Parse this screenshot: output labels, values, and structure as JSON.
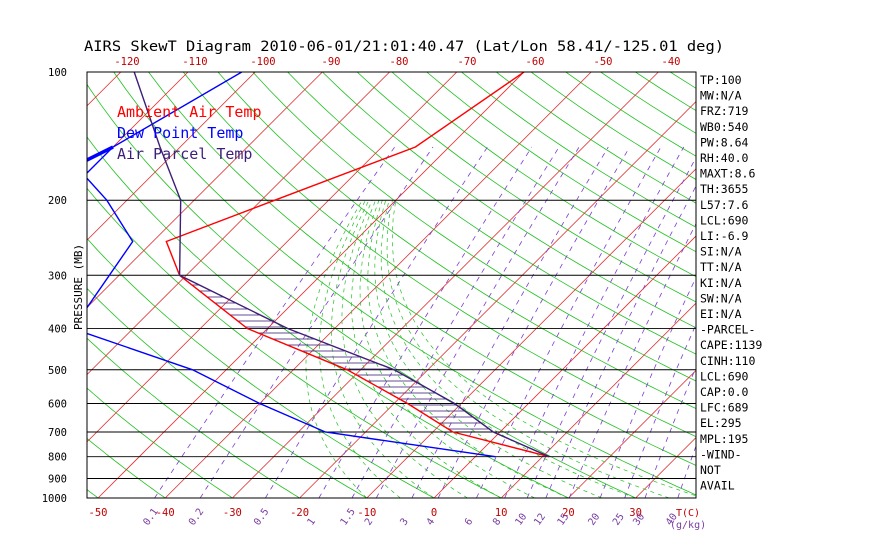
{
  "chart_data": {
    "type": "line",
    "title": "AIRS SkewT Diagram 2010-06-01/21:01:40.47 (Lat/Lon 58.41/-125.01 deg)",
    "ylabel": "PRESSURE (MB)",
    "y_axis": {
      "scale": "log",
      "range": [
        1000,
        100
      ],
      "tick_labels": [
        "100",
        "200",
        "300",
        "400",
        "500",
        "600",
        "700",
        "800",
        "900",
        "1000"
      ],
      "grid": true
    },
    "x_axis_top": {
      "ticks": [
        -120,
        -110,
        -100,
        -90,
        -80,
        -70,
        -60,
        -50,
        -40
      ]
    },
    "x_axis_bottom": {
      "unit_label": "T(C)",
      "ticks": [
        -50,
        -40,
        -30,
        -20,
        -10,
        0,
        10,
        20,
        30
      ]
    },
    "mixing_ratio_labels": [
      "0.1",
      "0.2",
      "0.5",
      "1",
      "1.5",
      "2",
      "3",
      "4",
      "6",
      "8",
      "10",
      "12",
      "15",
      "20",
      "25",
      "30",
      "40"
    ],
    "mixing_ratio_unit": "(g/kg)",
    "legend": {
      "placement": "top-left",
      "entries": [
        {
          "label": "Ambient Air Temp",
          "color": "#ff0000"
        },
        {
          "label": "Dew Point Temp",
          "color": "#0000ff"
        },
        {
          "label": "Air Parcel Temp",
          "color": "#3d1f7a"
        }
      ]
    },
    "series": [
      {
        "name": "Ambient Air Temp",
        "color": "#ff0000",
        "points": [
          {
            "p": 100,
            "t": -50
          },
          {
            "p": 150,
            "t": -55
          },
          {
            "p": 200,
            "t": -68
          },
          {
            "p": 250,
            "t": -78
          },
          {
            "p": 300,
            "t": -71
          },
          {
            "p": 400,
            "t": -53
          },
          {
            "p": 500,
            "t": -32
          },
          {
            "p": 600,
            "t": -18
          },
          {
            "p": 700,
            "t": -7
          },
          {
            "p": 800,
            "t": 11
          }
        ]
      },
      {
        "name": "Dew Point Temp",
        "color": "#0000ff",
        "points": [
          {
            "p": 100,
            "t": -92
          },
          {
            "p": 150,
            "t": -100
          },
          {
            "p": 175,
            "t": -100
          },
          {
            "p": 200,
            "t": -93
          },
          {
            "p": 250,
            "t": -83
          },
          {
            "p": 400,
            "t": -79
          },
          {
            "p": 500,
            "t": -55
          },
          {
            "p": 600,
            "t": -40
          },
          {
            "p": 700,
            "t": -26
          },
          {
            "p": 800,
            "t": 3
          }
        ]
      },
      {
        "name": "Air Parcel Temp",
        "color": "#3d1f7a",
        "points": [
          {
            "p": 100,
            "t": -108
          },
          {
            "p": 150,
            "t": -93
          },
          {
            "p": 200,
            "t": -82
          },
          {
            "p": 300,
            "t": -71
          },
          {
            "p": 400,
            "t": -47
          },
          {
            "p": 500,
            "t": -25
          },
          {
            "p": 600,
            "t": -11
          },
          {
            "p": 700,
            "t": -1
          },
          {
            "p": 800,
            "t": 11
          }
        ]
      }
    ],
    "cape_shading": {
      "from_p": 700,
      "to_p": 300,
      "style": "hatched"
    },
    "indices": [
      "TP:100",
      "MW:N/A",
      "FRZ:719",
      "WB0:540",
      "PW:8.64",
      "RH:40.0",
      "MAXT:8.6",
      "TH:3655",
      "L57:7.6",
      "LCL:690",
      "LI:-6.9",
      "SI:N/A",
      "TT:N/A",
      "KI:N/A",
      "SW:N/A",
      "EI:N/A",
      "-PARCEL-",
      "CAPE:1139",
      "CINH:110",
      "LCL:690",
      "CAP:0.0",
      "LFC:689",
      "EL:295",
      "MPL:195",
      "-WIND-",
      "NOT",
      "AVAIL"
    ]
  }
}
